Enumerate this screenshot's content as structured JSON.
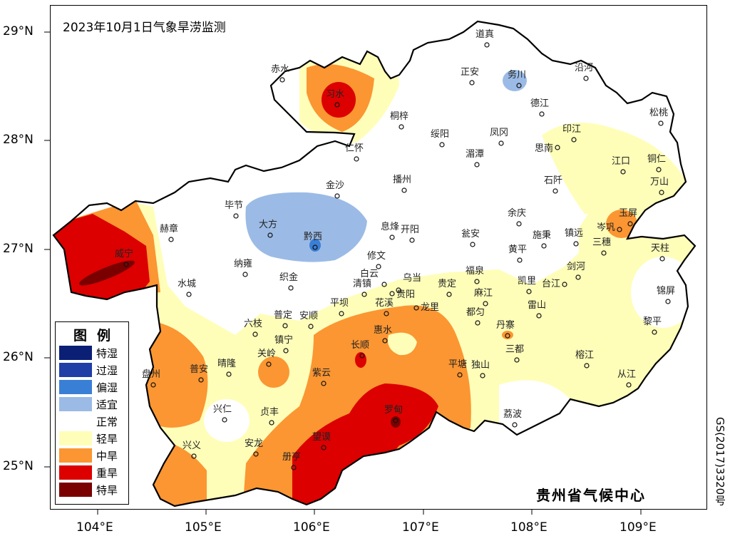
{
  "title": "2023年10月1日气象旱涝监测",
  "axes": {
    "lon_ticks": [
      "104°E",
      "105°E",
      "106°E",
      "107°E",
      "108°E",
      "109°E"
    ],
    "lat_ticks": [
      "29°N",
      "28°N",
      "27°N",
      "26°N",
      "25°N"
    ]
  },
  "legend": {
    "title": "图例",
    "items": [
      {
        "label": "特湿",
        "color": "#0b1f75"
      },
      {
        "label": "过湿",
        "color": "#1f3ea6"
      },
      {
        "label": "偏湿",
        "color": "#3a7fd6"
      },
      {
        "label": "适宜",
        "color": "#9bbbe6"
      },
      {
        "label": "正常",
        "color": "#ffffff"
      },
      {
        "label": "轻旱",
        "color": "#fefeb9"
      },
      {
        "label": "中旱",
        "color": "#fb9632"
      },
      {
        "label": "重旱",
        "color": "#dc0000"
      },
      {
        "label": "特旱",
        "color": "#7a0000"
      }
    ]
  },
  "cities": [
    "赤水",
    "习水",
    "道真",
    "务川",
    "沿河",
    "正安",
    "德江",
    "桐梓",
    "绥阳",
    "凤冈",
    "松桃",
    "印江",
    "思南",
    "仁怀",
    "湄潭",
    "江口",
    "铜仁",
    "金沙",
    "播州",
    "石阡",
    "万山",
    "毕节",
    "大方",
    "黔西",
    "息烽",
    "开阳",
    "瓮安",
    "余庆",
    "玉屏",
    "岑巩",
    "施秉",
    "镇远",
    "三穗",
    "赫章",
    "威宁",
    "黄平",
    "天柱",
    "修文",
    "纳雍",
    "织金",
    "白云",
    "乌当",
    "贵阳",
    "清镇",
    "福泉",
    "贵定",
    "凯里",
    "剑河",
    "台江",
    "水城",
    "锦屏",
    "麻江",
    "雷山",
    "龙里",
    "平坝",
    "花溪",
    "普定",
    "安顺",
    "都匀",
    "六枝",
    "丹寨",
    "黎平",
    "镇宁",
    "惠水",
    "长顺",
    "关岭",
    "三都",
    "榕江",
    "盘州",
    "普安",
    "晴隆",
    "紫云",
    "平塘",
    "独山",
    "从江",
    "兴仁",
    "贞丰",
    "罗甸",
    "荔波",
    "兴义",
    "安龙",
    "册亨",
    "望谟"
  ],
  "organization": "贵州省气候中心",
  "map_approval": "GS(2017)3320号"
}
